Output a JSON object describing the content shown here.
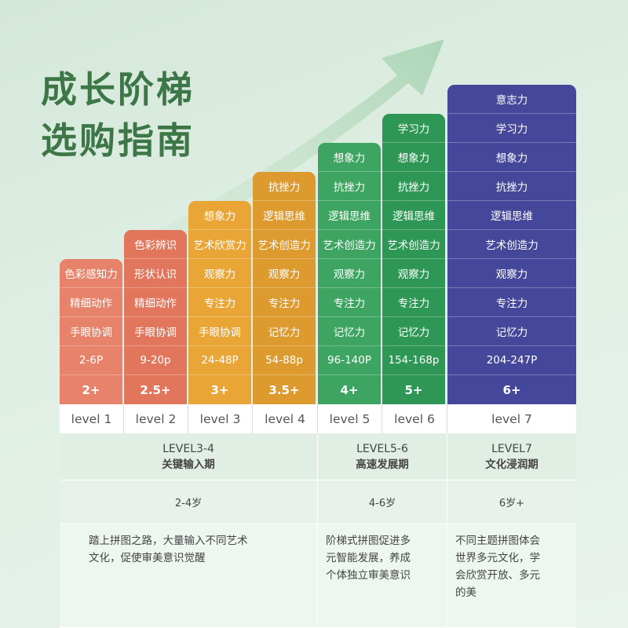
{
  "title": {
    "line1": "成长阶梯",
    "line2": "选购指南"
  },
  "colors": {
    "level1": "#e8836b",
    "level2": "#e2765c",
    "level3": "#e9a637",
    "level4": "#dd9a2e",
    "level5": "#3ea462",
    "level6": "#2f9756",
    "level7": "#45479a",
    "arrow": "#b9dcc1",
    "title": "#3e7747"
  },
  "levels": [
    {
      "label": "level 1",
      "cells": [
        "色彩感知力",
        "精细动作",
        "手眼协调",
        "2-6P",
        "2+"
      ]
    },
    {
      "label": "level 2",
      "cells": [
        "色彩辨识",
        "形状认识",
        "精细动作",
        "手眼协调",
        "9-20p",
        "2.5+"
      ]
    },
    {
      "label": "level 3",
      "cells": [
        "想象力",
        "艺术欣赏力",
        "观察力",
        "专注力",
        "手眼协调",
        "24-48P",
        "3+"
      ]
    },
    {
      "label": "level 4",
      "cells": [
        "抗挫力",
        "逻辑思维",
        "艺术创造力",
        "观察力",
        "专注力",
        "记忆力",
        "54-88p",
        "3.5+"
      ]
    },
    {
      "label": "level 5",
      "cells": [
        "想象力",
        "抗挫力",
        "逻辑思维",
        "艺术创造力",
        "观察力",
        "专注力",
        "记忆力",
        "96-140P",
        "4+"
      ]
    },
    {
      "label": "level 6",
      "cells": [
        "学习力",
        "想象力",
        "抗挫力",
        "逻辑思维",
        "艺术创造力",
        "观察力",
        "专注力",
        "记忆力",
        "154-168p",
        "5+"
      ]
    },
    {
      "label": "level 7",
      "cells": [
        "意志力",
        "学习力",
        "想象力",
        "抗挫力",
        "逻辑思维",
        "艺术创造力",
        "观察力",
        "专注力",
        "记忆力",
        "204-247P",
        "6+"
      ]
    }
  ],
  "groups": [
    {
      "name": "LEVEL3-4",
      "stage": "关键输入期",
      "age": "2-4岁",
      "desc": [
        "踏上拼图之路，大量输入不同艺术",
        "文化，促使审美意识觉醒"
      ]
    },
    {
      "name": "LEVEL5-6",
      "stage": "高速发展期",
      "age": "4-6岁",
      "desc": [
        "阶梯式拼图促进多",
        "元智能发展，养成",
        "个体独立审美意识"
      ]
    },
    {
      "name": "LEVEL7",
      "stage": "文化浸润期",
      "age": "6岁+",
      "desc": [
        "不同主题拼图体会",
        "世界多元文化，学",
        "会欣赏开放、多元",
        "的美"
      ]
    }
  ]
}
